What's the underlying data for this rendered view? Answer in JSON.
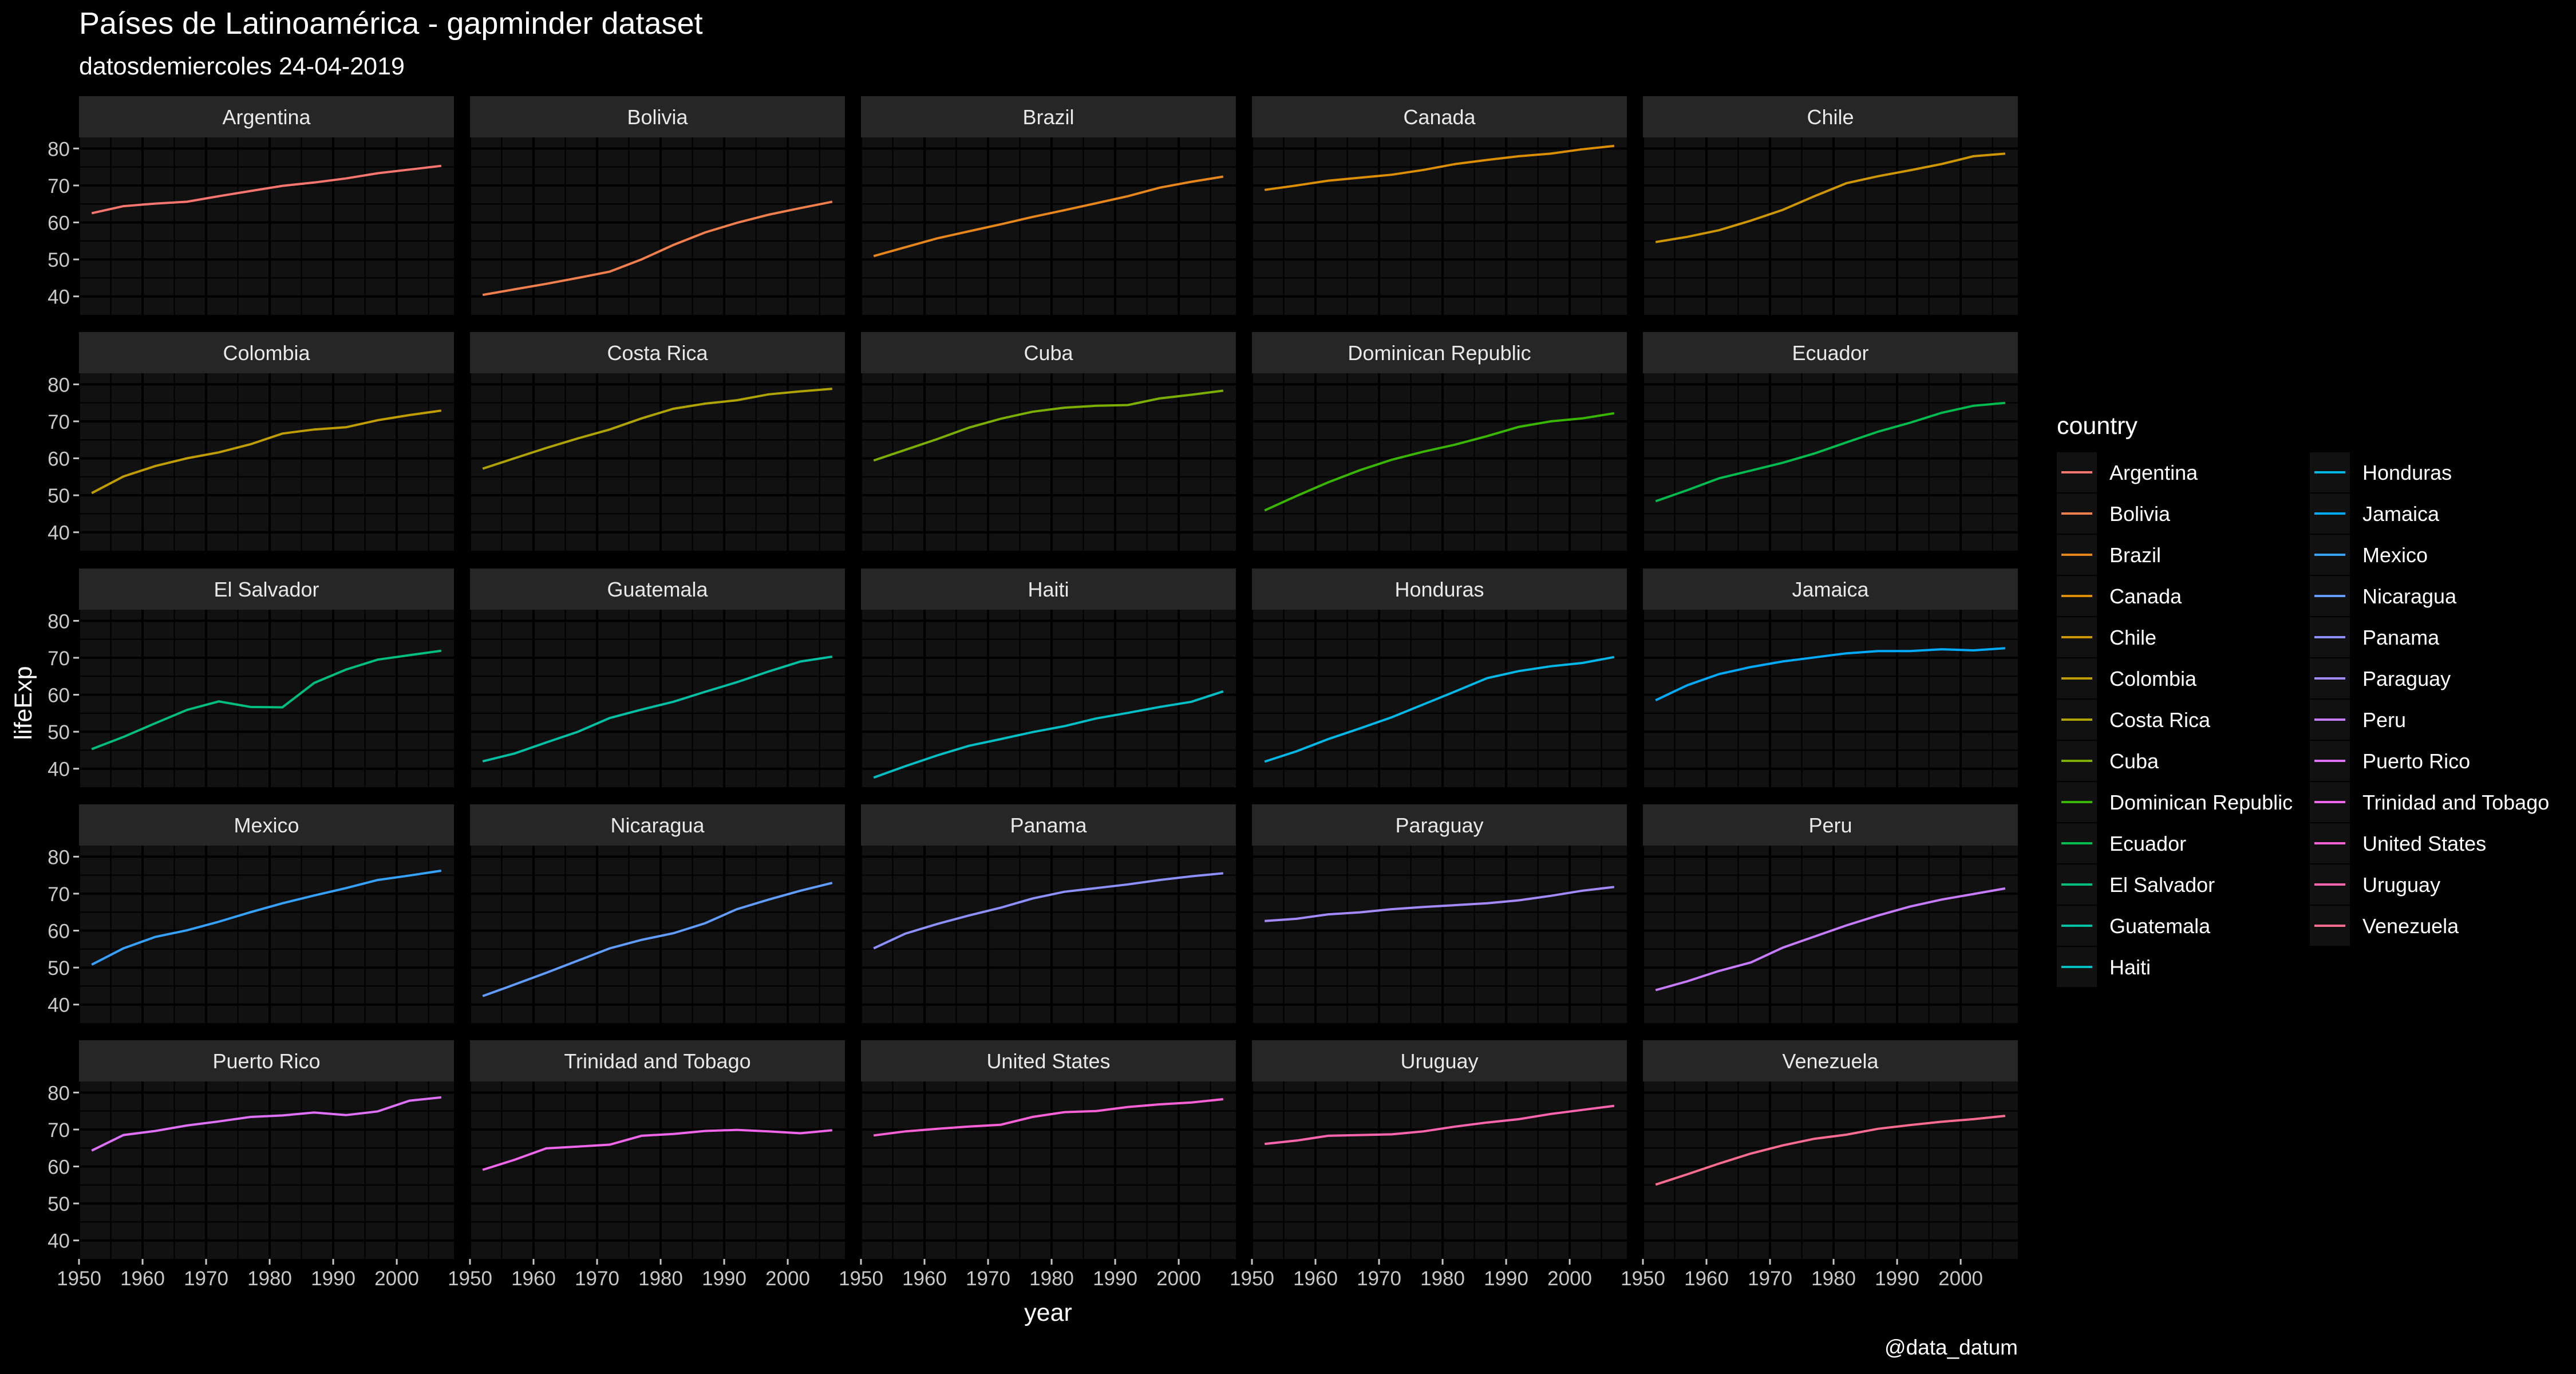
{
  "title": "Países de Latinoamérica - gapminder dataset",
  "subtitle": "datosdemiercoles 24-04-2019",
  "caption": "@data_datum",
  "colors": {
    "background": "#000000",
    "panel": "#111111",
    "strip": "#262626",
    "grid": "#000000",
    "text": "#ffffff",
    "axis_text": "#c8c8c8"
  },
  "chart_data": {
    "type": "line",
    "facet": "country",
    "xlabel": "year",
    "ylabel": "lifeExp",
    "xlim": [
      1950,
      2009
    ],
    "ylim": [
      35,
      83
    ],
    "xticks": [
      1950,
      1960,
      1970,
      1980,
      1990,
      2000
    ],
    "yticks": [
      40,
      50,
      60,
      70,
      80
    ],
    "grid": true,
    "legend": {
      "title": "country",
      "position": "right"
    },
    "x": [
      1952,
      1957,
      1962,
      1967,
      1972,
      1977,
      1982,
      1987,
      1992,
      1997,
      2002,
      2007
    ],
    "series": [
      {
        "name": "Argentina",
        "color": "#F8766D",
        "values": [
          62.5,
          64.4,
          65.1,
          65.6,
          67.1,
          68.5,
          69.9,
          70.8,
          71.9,
          73.3,
          74.3,
          75.3
        ]
      },
      {
        "name": "Bolivia",
        "color": "#F17F4D",
        "values": [
          40.4,
          41.9,
          43.4,
          45.0,
          46.7,
          50.0,
          53.9,
          57.3,
          59.9,
          62.1,
          63.9,
          65.6
        ]
      },
      {
        "name": "Brazil",
        "color": "#E7861B",
        "values": [
          50.9,
          53.3,
          55.7,
          57.6,
          59.5,
          61.5,
          63.3,
          65.2,
          67.1,
          69.4,
          71.0,
          72.4
        ]
      },
      {
        "name": "Canada",
        "color": "#DB8E00",
        "values": [
          68.8,
          70.0,
          71.3,
          72.1,
          72.9,
          74.2,
          75.8,
          76.9,
          77.9,
          78.6,
          79.8,
          80.7
        ]
      },
      {
        "name": "Chile",
        "color": "#CE9600",
        "values": [
          54.7,
          56.1,
          57.9,
          60.5,
          63.4,
          67.1,
          70.6,
          72.5,
          74.1,
          75.8,
          77.9,
          78.6
        ]
      },
      {
        "name": "Colombia",
        "color": "#BF9D00",
        "values": [
          50.6,
          55.1,
          57.9,
          60.0,
          61.6,
          63.8,
          66.7,
          67.8,
          68.4,
          70.3,
          71.7,
          72.9
        ]
      },
      {
        "name": "Costa Rica",
        "color": "#AEA300",
        "values": [
          57.2,
          60.0,
          62.8,
          65.4,
          67.8,
          70.8,
          73.4,
          74.8,
          75.7,
          77.3,
          78.1,
          78.8
        ]
      },
      {
        "name": "Cuba",
        "color": "#7CAE00",
        "values": [
          59.4,
          62.3,
          65.2,
          68.3,
          70.7,
          72.6,
          73.7,
          74.2,
          74.4,
          76.2,
          77.2,
          78.3
        ]
      },
      {
        "name": "Dominican Republic",
        "color": "#39B600",
        "values": [
          45.9,
          49.8,
          53.5,
          56.8,
          59.6,
          61.8,
          63.7,
          66.0,
          68.5,
          70.0,
          70.8,
          72.2
        ]
      },
      {
        "name": "Ecuador",
        "color": "#00BB4E",
        "values": [
          48.4,
          51.4,
          54.6,
          56.7,
          58.8,
          61.3,
          64.3,
          67.2,
          69.6,
          72.3,
          74.2,
          75.0
        ]
      },
      {
        "name": "El Salvador",
        "color": "#00BF7D",
        "values": [
          45.3,
          48.6,
          52.3,
          55.9,
          58.2,
          56.7,
          56.6,
          63.2,
          66.8,
          69.5,
          70.7,
          71.9
        ]
      },
      {
        "name": "Guatemala",
        "color": "#00C0A3",
        "values": [
          42.0,
          44.1,
          47.1,
          50.0,
          53.7,
          56.0,
          58.1,
          60.8,
          63.4,
          66.3,
          68.98,
          70.3
        ]
      },
      {
        "name": "Haiti",
        "color": "#00BFC4",
        "values": [
          37.6,
          40.7,
          43.6,
          46.2,
          48.0,
          49.9,
          51.5,
          53.6,
          55.1,
          56.7,
          58.1,
          60.9
        ]
      },
      {
        "name": "Honduras",
        "color": "#00B8E7",
        "values": [
          41.9,
          44.7,
          48.0,
          50.9,
          53.9,
          57.4,
          60.9,
          64.5,
          66.4,
          67.7,
          68.6,
          70.2
        ]
      },
      {
        "name": "Jamaica",
        "color": "#00ABFD",
        "values": [
          58.5,
          62.6,
          65.6,
          67.5,
          69.0,
          70.1,
          71.2,
          71.8,
          71.8,
          72.3,
          72.0,
          72.6
        ]
      },
      {
        "name": "Mexico",
        "color": "#35A2FF",
        "values": [
          50.8,
          55.2,
          58.3,
          60.1,
          62.4,
          65.0,
          67.4,
          69.5,
          71.5,
          73.7,
          74.9,
          76.2
        ]
      },
      {
        "name": "Nicaragua",
        "color": "#619CFF",
        "values": [
          42.3,
          45.4,
          48.6,
          51.9,
          55.2,
          57.5,
          59.3,
          62.0,
          65.8,
          68.4,
          70.8,
          72.9
        ]
      },
      {
        "name": "Panama",
        "color": "#8D90FF",
        "values": [
          55.2,
          59.2,
          61.8,
          64.1,
          66.2,
          68.7,
          70.5,
          71.5,
          72.5,
          73.7,
          74.7,
          75.5
        ]
      },
      {
        "name": "Paraguay",
        "color": "#A58AFF",
        "values": [
          62.6,
          63.2,
          64.4,
          64.95,
          65.8,
          66.4,
          66.9,
          67.4,
          68.2,
          69.4,
          70.8,
          71.8
        ]
      },
      {
        "name": "Peru",
        "color": "#C77CFF",
        "values": [
          43.9,
          46.3,
          49.1,
          51.4,
          55.4,
          58.4,
          61.4,
          64.1,
          66.5,
          68.4,
          69.9,
          71.4
        ]
      },
      {
        "name": "Puerto Rico",
        "color": "#DF70F8",
        "values": [
          64.3,
          68.5,
          69.6,
          71.1,
          72.2,
          73.4,
          73.8,
          74.6,
          73.9,
          74.9,
          77.8,
          78.7
        ]
      },
      {
        "name": "Trinidad and Tobago",
        "color": "#F066EA",
        "values": [
          59.1,
          61.8,
          64.9,
          65.4,
          65.9,
          68.3,
          68.8,
          69.6,
          69.9,
          69.5,
          68.98,
          69.8
        ]
      },
      {
        "name": "United States",
        "color": "#FB61D7",
        "values": [
          68.4,
          69.5,
          70.2,
          70.8,
          71.3,
          73.4,
          74.7,
          75.0,
          76.1,
          76.8,
          77.3,
          78.2
        ]
      },
      {
        "name": "Uruguay",
        "color": "#FF65AC",
        "values": [
          66.1,
          67.0,
          68.3,
          68.5,
          68.7,
          69.5,
          70.8,
          71.9,
          72.8,
          74.2,
          75.3,
          76.4
        ]
      },
      {
        "name": "Venezuela",
        "color": "#FF6C91",
        "values": [
          55.1,
          57.9,
          60.8,
          63.5,
          65.7,
          67.5,
          68.6,
          70.2,
          71.2,
          72.1,
          72.8,
          73.7
        ]
      }
    ]
  }
}
